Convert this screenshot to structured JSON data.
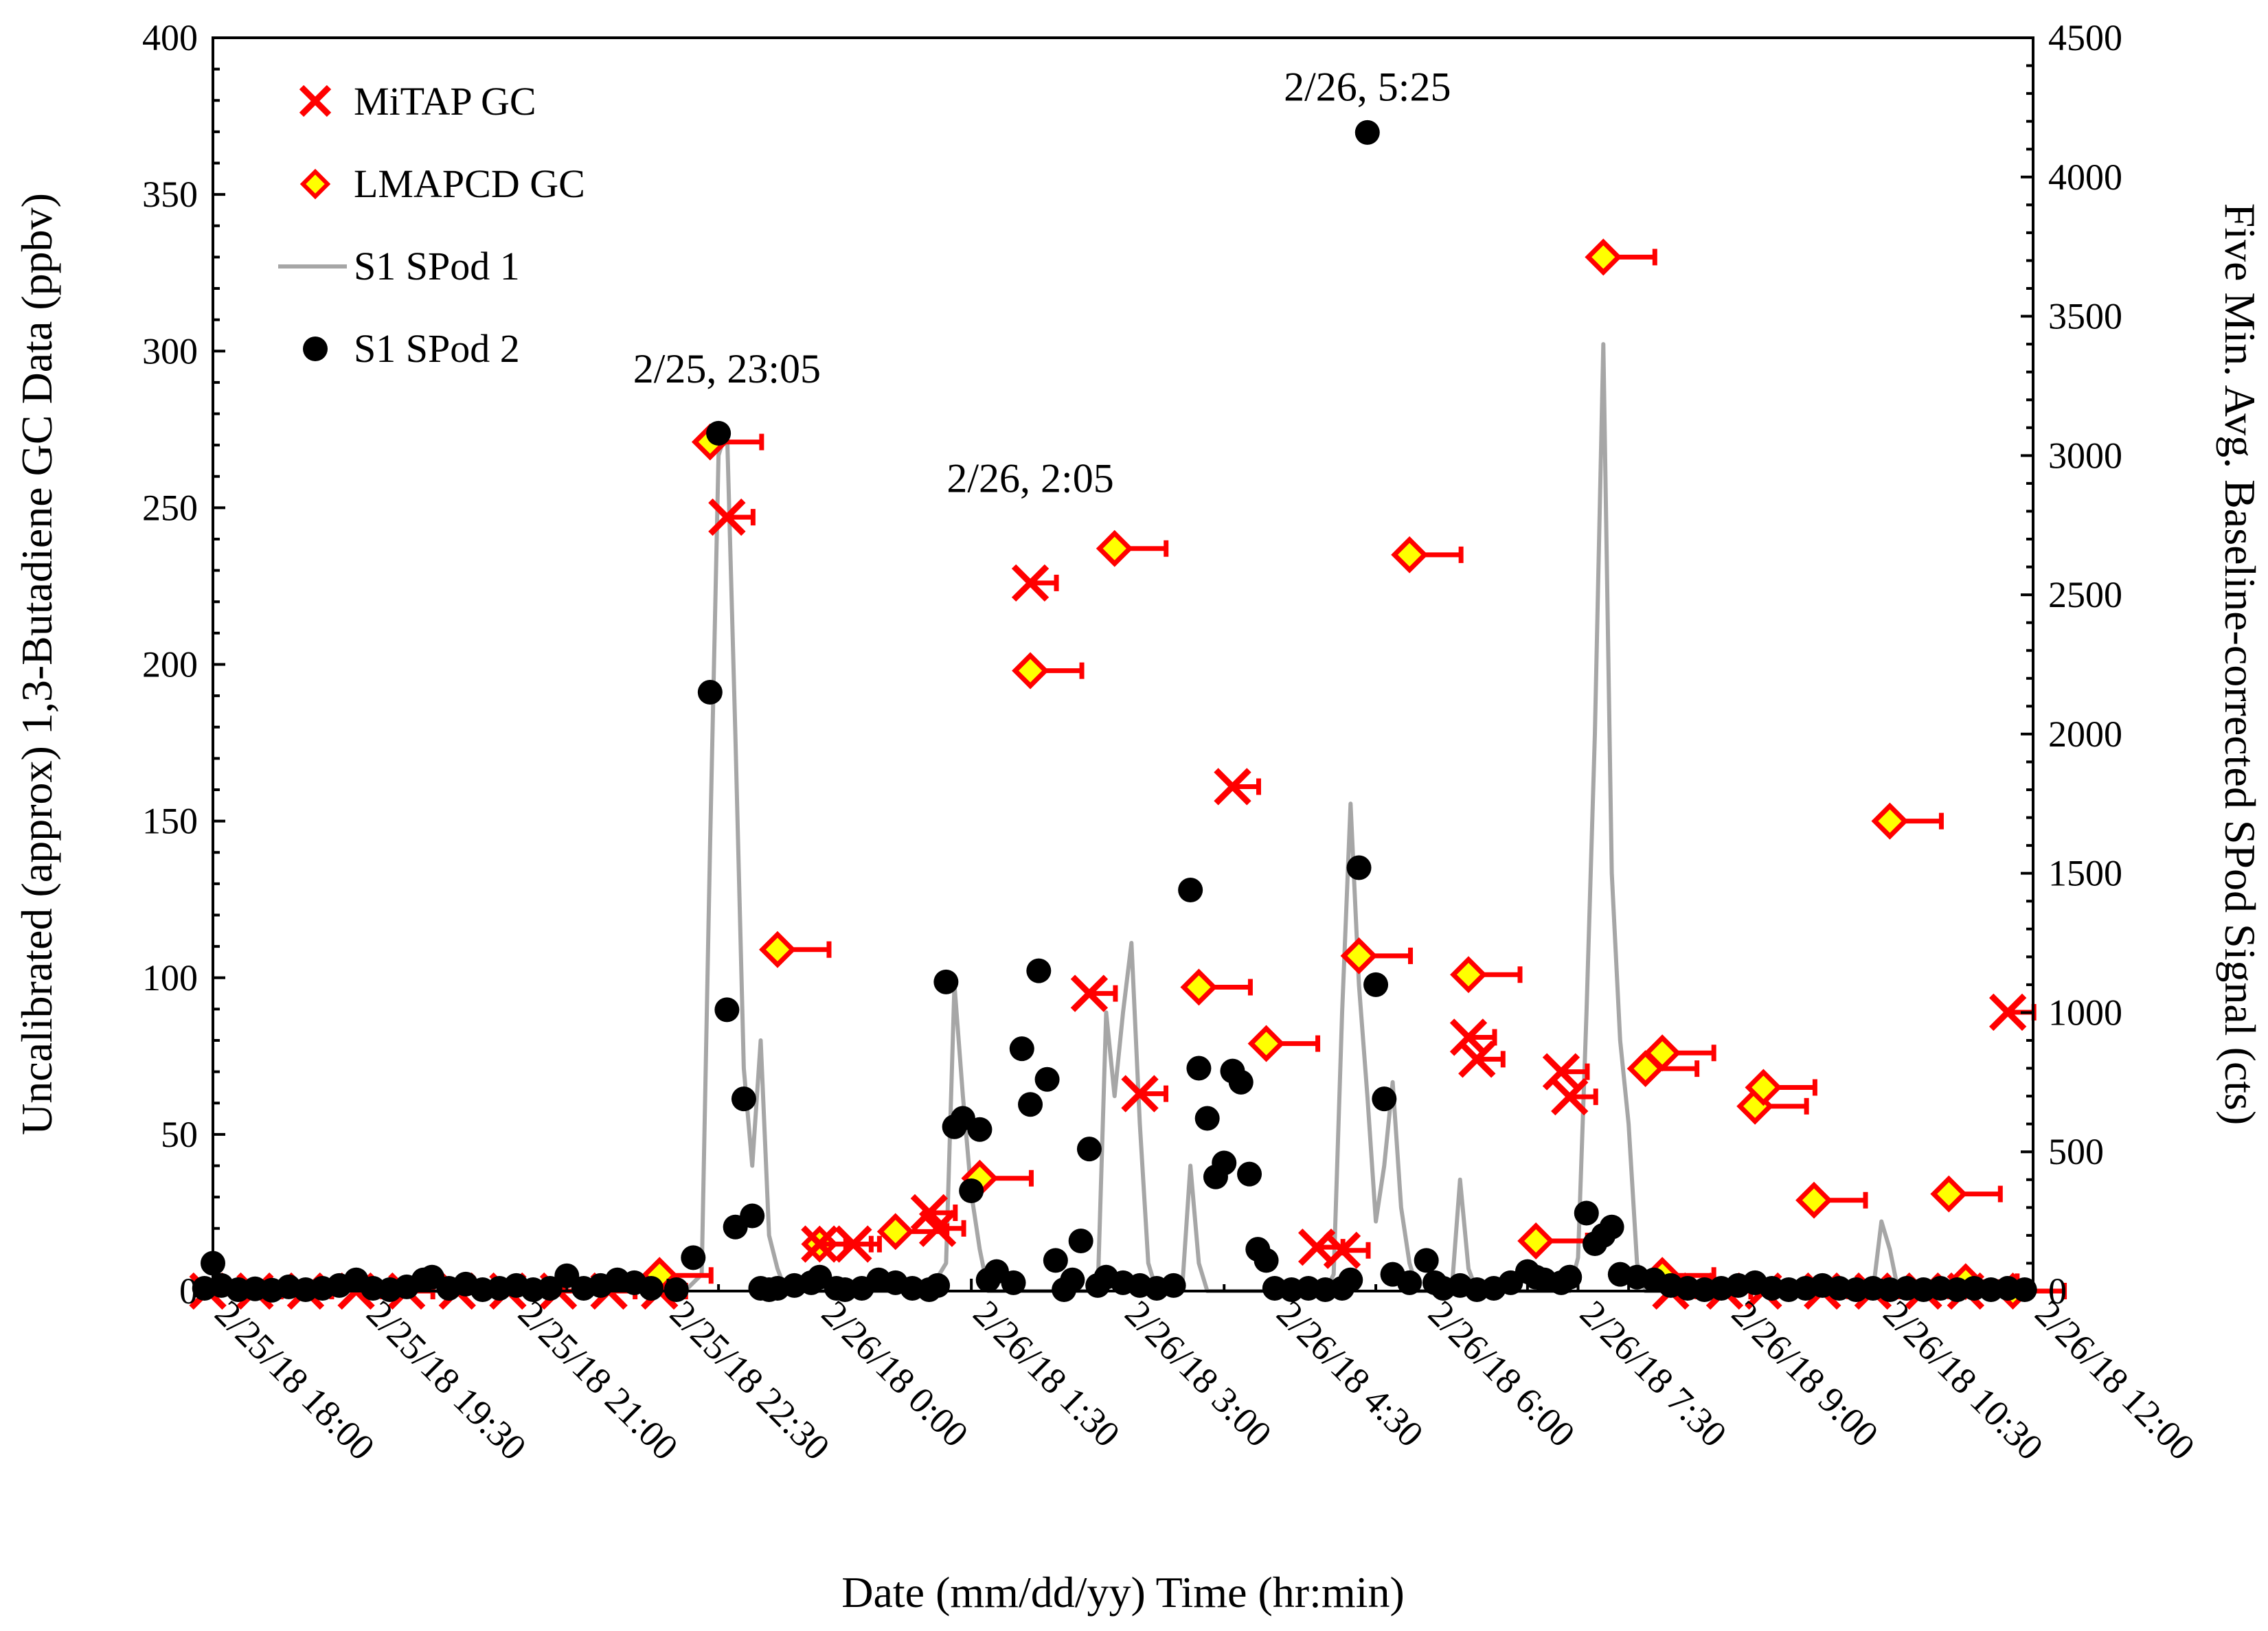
{
  "chart_data": {
    "type": "scatter",
    "xlabel": "Date (mm/dd/yy) Time (hr:min)",
    "ylabel": "Uncalibrated (approx) 1,3-Butadiene GC Data (ppbv)",
    "y2label": "Five Min. Avg. Baseline-corrected SPod Signal (cts)",
    "x_tick_labels": [
      "2/25/18 18:00",
      "2/25/18 19:30",
      "2/25/18 21:00",
      "2/25/18 22:30",
      "2/26/18 0:00",
      "2/26/18 1:30",
      "2/26/18 3:00",
      "2/26/18 4:30",
      "2/26/18 6:00",
      "2/26/18 7:30",
      "2/26/18 9:00",
      "2/26/18 10:30",
      "2/26/18 12:00"
    ],
    "xlim": [
      "2/25/18 18:00",
      "2/26/18 12:00"
    ],
    "ylim": [
      0,
      400
    ],
    "y_ticks": [
      0,
      50,
      100,
      150,
      200,
      250,
      300,
      350,
      400
    ],
    "y2lim": [
      0,
      4500
    ],
    "y2_ticks": [
      0,
      500,
      1000,
      1500,
      2000,
      2500,
      3000,
      3500,
      4000,
      4500
    ],
    "legend_position": "top-left",
    "grid": false,
    "annotations": [
      {
        "text": "2/25, 23:05",
        "x": "2/25/18 23:05",
        "y": 290
      },
      {
        "text": "2/26, 2:05",
        "x": "2/26/18 2:05",
        "y": 255
      },
      {
        "text": "2/26, 5:25",
        "x": "2/26/18 5:25",
        "y": 380
      }
    ],
    "series": [
      {
        "name": "MiTAP GC",
        "marker": "x",
        "color": "#ff0000",
        "axis": "left",
        "error_bar": "right",
        "points": [
          [
            "2/25/18 17:57",
            0
          ],
          [
            "2/25/18 18:25",
            0
          ],
          [
            "2/25/18 18:55",
            0
          ],
          [
            "2/25/18 19:25",
            0
          ],
          [
            "2/25/18 19:55",
            0
          ],
          [
            "2/25/18 20:25",
            0
          ],
          [
            "2/25/18 20:55",
            0
          ],
          [
            "2/25/18 21:25",
            0
          ],
          [
            "2/25/18 21:55",
            0
          ],
          [
            "2/25/18 22:25",
            0
          ],
          [
            "2/25/18 23:05",
            247
          ],
          [
            "2/26/18 0:00",
            15
          ],
          [
            "2/26/18 0:20",
            15
          ],
          [
            "2/26/18 1:05",
            25
          ],
          [
            "2/26/18 1:10",
            20
          ],
          [
            "2/26/18 2:05",
            226
          ],
          [
            "2/26/18 2:40",
            95
          ],
          [
            "2/26/18 3:10",
            63
          ],
          [
            "2/26/18 4:05",
            161
          ],
          [
            "2/26/18 4:55",
            14
          ],
          [
            "2/26/18 5:10",
            13
          ],
          [
            "2/26/18 6:25",
            81
          ],
          [
            "2/26/18 6:30",
            74
          ],
          [
            "2/26/18 7:20",
            70
          ],
          [
            "2/26/18 7:25",
            62
          ],
          [
            "2/26/18 8:25",
            0
          ],
          [
            "2/26/18 8:57",
            0
          ],
          [
            "2/26/18 9:20",
            0
          ],
          [
            "2/26/18 9:55",
            0
          ],
          [
            "2/26/18 10:25",
            0
          ],
          [
            "2/26/18 10:55",
            0
          ],
          [
            "2/26/18 11:20",
            0
          ],
          [
            "2/26/18 11:45",
            89
          ]
        ]
      },
      {
        "name": "LMAPCD GC",
        "marker": "diamond",
        "color": "#ff0000",
        "fill": "#ffff00",
        "axis": "left",
        "error_bar": "right",
        "points": [
          [
            "2/25/18 22:25",
            5
          ],
          [
            "2/25/18 22:55",
            271
          ],
          [
            "2/25/18 23:35",
            109
          ],
          [
            "2/26/18 0:00",
            15
          ],
          [
            "2/26/18 0:45",
            19
          ],
          [
            "2/26/18 1:35",
            36
          ],
          [
            "2/26/18 2:05",
            198
          ],
          [
            "2/26/18 2:55",
            237
          ],
          [
            "2/26/18 3:45",
            97
          ],
          [
            "2/26/18 4:25",
            79
          ],
          [
            "2/26/18 5:20",
            107
          ],
          [
            "2/26/18 5:50",
            235
          ],
          [
            "2/26/18 6:25",
            101
          ],
          [
            "2/26/18 7:05",
            16
          ],
          [
            "2/26/18 7:45",
            330
          ],
          [
            "2/26/18 8:10",
            71
          ],
          [
            "2/26/18 8:20",
            76
          ],
          [
            "2/26/18 8:20",
            5
          ],
          [
            "2/26/18 9:15",
            59
          ],
          [
            "2/26/18 9:20",
            65
          ],
          [
            "2/26/18 9:50",
            29
          ],
          [
            "2/26/18 10:35",
            150
          ],
          [
            "2/26/18 11:10",
            31
          ],
          [
            "2/26/18 11:20",
            3
          ],
          [
            "2/26/18 11:48",
            0
          ]
        ]
      },
      {
        "name": "S1 SPod 1",
        "marker": "line",
        "color": "#a6a6a6",
        "axis": "right",
        "points": [
          [
            "2/25/18 17:55",
            0
          ],
          [
            "2/25/18 22:40",
            0
          ],
          [
            "2/25/18 22:50",
            60
          ],
          [
            "2/25/18 22:55",
            1600
          ],
          [
            "2/25/18 23:00",
            3000
          ],
          [
            "2/25/18 23:05",
            3100
          ],
          [
            "2/25/18 23:10",
            2000
          ],
          [
            "2/25/18 23:15",
            800
          ],
          [
            "2/25/18 23:20",
            450
          ],
          [
            "2/25/18 23:25",
            900
          ],
          [
            "2/25/18 23:30",
            200
          ],
          [
            "2/25/18 23:35",
            80
          ],
          [
            "2/25/18 23:40",
            0
          ],
          [
            "2/26/18 1:05",
            0
          ],
          [
            "2/26/18 1:15",
            100
          ],
          [
            "2/26/18 1:20",
            1100
          ],
          [
            "2/26/18 1:25",
            700
          ],
          [
            "2/26/18 1:30",
            350
          ],
          [
            "2/26/18 1:35",
            150
          ],
          [
            "2/26/18 1:40",
            0
          ],
          [
            "2/26/18 2:45",
            0
          ],
          [
            "2/26/18 2:50",
            1000
          ],
          [
            "2/26/18 2:55",
            700
          ],
          [
            "2/26/18 3:00",
            1000
          ],
          [
            "2/26/18 3:05",
            1250
          ],
          [
            "2/26/18 3:10",
            600
          ],
          [
            "2/26/18 3:15",
            100
          ],
          [
            "2/26/18 3:20",
            0
          ],
          [
            "2/26/18 3:35",
            0
          ],
          [
            "2/26/18 3:40",
            450
          ],
          [
            "2/26/18 3:45",
            100
          ],
          [
            "2/26/18 3:50",
            0
          ],
          [
            "2/26/18 5:00",
            0
          ],
          [
            "2/26/18 5:05",
            60
          ],
          [
            "2/26/18 5:10",
            1000
          ],
          [
            "2/26/18 5:15",
            1750
          ],
          [
            "2/26/18 5:20",
            1100
          ],
          [
            "2/26/18 5:25",
            700
          ],
          [
            "2/26/18 5:30",
            250
          ],
          [
            "2/26/18 5:35",
            450
          ],
          [
            "2/26/18 5:40",
            750
          ],
          [
            "2/26/18 5:45",
            300
          ],
          [
            "2/26/18 5:50",
            100
          ],
          [
            "2/26/18 5:55",
            0
          ],
          [
            "2/26/18 6:15",
            0
          ],
          [
            "2/26/18 6:20",
            400
          ],
          [
            "2/26/18 6:25",
            80
          ],
          [
            "2/26/18 6:30",
            0
          ],
          [
            "2/26/18 7:25",
            0
          ],
          [
            "2/26/18 7:30",
            120
          ],
          [
            "2/26/18 7:35",
            1000
          ],
          [
            "2/26/18 7:40",
            2000
          ],
          [
            "2/26/18 7:45",
            3400
          ],
          [
            "2/26/18 7:50",
            1500
          ],
          [
            "2/26/18 7:55",
            900
          ],
          [
            "2/26/18 8:00",
            600
          ],
          [
            "2/26/18 8:05",
            100
          ],
          [
            "2/26/18 8:10",
            0
          ],
          [
            "2/26/18 10:25",
            0
          ],
          [
            "2/26/18 10:30",
            250
          ],
          [
            "2/26/18 10:35",
            150
          ],
          [
            "2/26/18 10:40",
            0
          ],
          [
            "2/26/18 11:55",
            0
          ]
        ]
      },
      {
        "name": "S1 SPod 2",
        "marker": "circle",
        "color": "#000000",
        "axis": "right",
        "points": [
          [
            "2/25/18 17:55",
            10
          ],
          [
            "2/25/18 18:00",
            100
          ],
          [
            "2/25/18 18:05",
            20
          ],
          [
            "2/25/18 18:15",
            5
          ],
          [
            "2/25/18 18:25",
            8
          ],
          [
            "2/25/18 18:35",
            3
          ],
          [
            "2/25/18 18:45",
            15
          ],
          [
            "2/25/18 18:55",
            5
          ],
          [
            "2/25/18 19:05",
            10
          ],
          [
            "2/25/18 19:15",
            20
          ],
          [
            "2/25/18 19:25",
            40
          ],
          [
            "2/25/18 19:35",
            10
          ],
          [
            "2/25/18 19:45",
            5
          ],
          [
            "2/25/18 19:55",
            15
          ],
          [
            "2/25/18 20:05",
            40
          ],
          [
            "2/25/18 20:10",
            50
          ],
          [
            "2/25/18 20:20",
            10
          ],
          [
            "2/25/18 20:30",
            25
          ],
          [
            "2/25/18 20:40",
            5
          ],
          [
            "2/25/18 20:50",
            10
          ],
          [
            "2/25/18 21:00",
            20
          ],
          [
            "2/25/18 21:10",
            5
          ],
          [
            "2/25/18 21:20",
            10
          ],
          [
            "2/25/18 21:30",
            55
          ],
          [
            "2/25/18 21:40",
            10
          ],
          [
            "2/25/18 21:50",
            20
          ],
          [
            "2/25/18 22:00",
            40
          ],
          [
            "2/25/18 22:10",
            30
          ],
          [
            "2/25/18 22:20",
            10
          ],
          [
            "2/25/18 22:35",
            5
          ],
          [
            "2/25/18 22:45",
            120
          ],
          [
            "2/25/18 22:55",
            2150
          ],
          [
            "2/25/18 23:00",
            3080
          ],
          [
            "2/25/18 23:05",
            1010
          ],
          [
            "2/25/18 23:10",
            230
          ],
          [
            "2/25/18 23:15",
            690
          ],
          [
            "2/25/18 23:20",
            270
          ],
          [
            "2/25/18 23:25",
            10
          ],
          [
            "2/25/18 23:30",
            5
          ],
          [
            "2/25/18 23:35",
            10
          ],
          [
            "2/25/18 23:45",
            20
          ],
          [
            "2/25/18 23:55",
            30
          ],
          [
            "2/26/18 0:00",
            50
          ],
          [
            "2/26/18 0:10",
            10
          ],
          [
            "2/26/18 0:15",
            5
          ],
          [
            "2/26/18 0:25",
            10
          ],
          [
            "2/26/18 0:35",
            40
          ],
          [
            "2/26/18 0:45",
            30
          ],
          [
            "2/26/18 0:55",
            10
          ],
          [
            "2/26/18 1:05",
            5
          ],
          [
            "2/26/18 1:10",
            20
          ],
          [
            "2/26/18 1:15",
            1110
          ],
          [
            "2/26/18 1:20",
            590
          ],
          [
            "2/26/18 1:25",
            620
          ],
          [
            "2/26/18 1:30",
            360
          ],
          [
            "2/26/18 1:35",
            580
          ],
          [
            "2/26/18 1:40",
            40
          ],
          [
            "2/26/18 1:45",
            70
          ],
          [
            "2/26/18 1:55",
            30
          ],
          [
            "2/26/18 2:00",
            870
          ],
          [
            "2/26/18 2:05",
            670
          ],
          [
            "2/26/18 2:10",
            1150
          ],
          [
            "2/26/18 2:15",
            760
          ],
          [
            "2/26/18 2:20",
            110
          ],
          [
            "2/26/18 2:25",
            5
          ],
          [
            "2/26/18 2:30",
            40
          ],
          [
            "2/26/18 2:35",
            180
          ],
          [
            "2/26/18 2:40",
            510
          ],
          [
            "2/26/18 2:45",
            20
          ],
          [
            "2/26/18 2:50",
            50
          ],
          [
            "2/26/18 3:00",
            30
          ],
          [
            "2/26/18 3:10",
            20
          ],
          [
            "2/26/18 3:20",
            10
          ],
          [
            "2/26/18 3:30",
            20
          ],
          [
            "2/26/18 3:40",
            1440
          ],
          [
            "2/26/18 3:45",
            800
          ],
          [
            "2/26/18 3:50",
            620
          ],
          [
            "2/26/18 3:55",
            410
          ],
          [
            "2/26/18 4:00",
            460
          ],
          [
            "2/26/18 4:05",
            790
          ],
          [
            "2/26/18 4:10",
            750
          ],
          [
            "2/26/18 4:15",
            420
          ],
          [
            "2/26/18 4:20",
            150
          ],
          [
            "2/26/18 4:25",
            110
          ],
          [
            "2/26/18 4:30",
            10
          ],
          [
            "2/26/18 4:40",
            5
          ],
          [
            "2/26/18 4:50",
            10
          ],
          [
            "2/26/18 5:00",
            5
          ],
          [
            "2/26/18 5:10",
            10
          ],
          [
            "2/26/18 5:15",
            40
          ],
          [
            "2/26/18 5:20",
            1520
          ],
          [
            "2/26/18 5:25",
            4160
          ],
          [
            "2/26/18 5:30",
            1100
          ],
          [
            "2/26/18 5:35",
            690
          ],
          [
            "2/26/18 5:40",
            60
          ],
          [
            "2/26/18 5:50",
            30
          ],
          [
            "2/26/18 6:00",
            110
          ],
          [
            "2/26/18 6:05",
            30
          ],
          [
            "2/26/18 6:10",
            10
          ],
          [
            "2/26/18 6:20",
            20
          ],
          [
            "2/26/18 6:30",
            5
          ],
          [
            "2/26/18 6:40",
            10
          ],
          [
            "2/26/18 6:50",
            30
          ],
          [
            "2/26/18 7:00",
            70
          ],
          [
            "2/26/18 7:05",
            50
          ],
          [
            "2/26/18 7:10",
            40
          ],
          [
            "2/26/18 7:20",
            30
          ],
          [
            "2/26/18 7:25",
            50
          ],
          [
            "2/26/18 7:35",
            280
          ],
          [
            "2/26/18 7:40",
            170
          ],
          [
            "2/26/18 7:45",
            200
          ],
          [
            "2/26/18 7:50",
            230
          ],
          [
            "2/26/18 7:55",
            60
          ],
          [
            "2/26/18 8:05",
            50
          ],
          [
            "2/26/18 8:15",
            40
          ],
          [
            "2/26/18 8:25",
            20
          ],
          [
            "2/26/18 8:35",
            10
          ],
          [
            "2/26/18 8:45",
            5
          ],
          [
            "2/26/18 8:55",
            10
          ],
          [
            "2/26/18 9:05",
            20
          ],
          [
            "2/26/18 9:15",
            30
          ],
          [
            "2/26/18 9:25",
            10
          ],
          [
            "2/26/18 9:35",
            5
          ],
          [
            "2/26/18 9:45",
            10
          ],
          [
            "2/26/18 9:55",
            20
          ],
          [
            "2/26/18 10:05",
            10
          ],
          [
            "2/26/18 10:15",
            5
          ],
          [
            "2/26/18 10:25",
            10
          ],
          [
            "2/26/18 10:35",
            5
          ],
          [
            "2/26/18 10:45",
            10
          ],
          [
            "2/26/18 10:55",
            5
          ],
          [
            "2/26/18 11:05",
            10
          ],
          [
            "2/26/18 11:15",
            5
          ],
          [
            "2/26/18 11:25",
            10
          ],
          [
            "2/26/18 11:35",
            5
          ],
          [
            "2/26/18 11:45",
            10
          ],
          [
            "2/26/18 11:55",
            5
          ]
        ]
      }
    ]
  }
}
